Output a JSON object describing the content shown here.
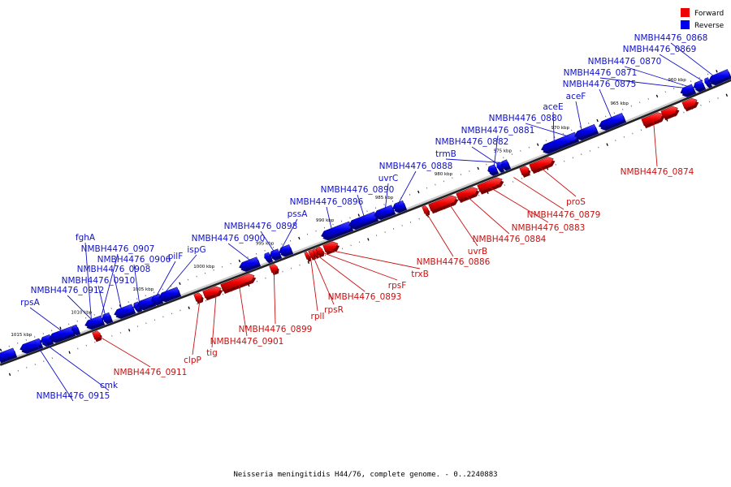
{
  "caption": "Neisseria meningitidis H44/76, complete genome. - 0..2240883",
  "legend": [
    {
      "label": "Forward",
      "color": "#ee0000"
    },
    {
      "label": "Reverse",
      "color": "#0000ee"
    }
  ],
  "ticks": [
    "1015 kbp",
    "1010 kbp",
    "1005 kbp",
    "1000 kbp",
    "995 kbp",
    "990 kbp",
    "985 kbp",
    "980 kbp",
    "975 kbp",
    "970 kbp",
    "965 kbp",
    "960 kbp"
  ],
  "reverse_labels": [
    "NMBH4476_0868",
    "NMBH4476_0869",
    "NMBH4476_0870",
    "NMBH4476_0871",
    "NMBH4476_0875",
    "aceF",
    "aceE",
    "NMBH4476_0880",
    "NMBH4476_0881",
    "NMBH4476_0882",
    "trmB",
    "NMBH4476_0888",
    "uvrC",
    "NMBH4476_0890",
    "NMBH4476_0896",
    "pssA",
    "NMBH4476_0898",
    "NMBH4476_0900",
    "ispG",
    "pilF",
    "fghA",
    "NMBH4476_0907",
    "NMBH4476_0906",
    "NMBH4476_0908",
    "NMBH4476_0910",
    "NMBH4476_0912",
    "rpsA",
    "cmk",
    "NMBH4476_0915"
  ],
  "forward_labels": [
    "NMBH4476_0874",
    "proS",
    "NMBH4476_0879",
    "NMBH4476_0883",
    "NMBH4476_0884",
    "uvrB",
    "NMBH4476_0886",
    "trxB",
    "rpsF",
    "NMBH4476_0893",
    "rpsR",
    "rplI",
    "NMBH4476_0899",
    "NMBH4476_0901",
    "tig",
    "clpP",
    "NMBH4476_0911"
  ]
}
